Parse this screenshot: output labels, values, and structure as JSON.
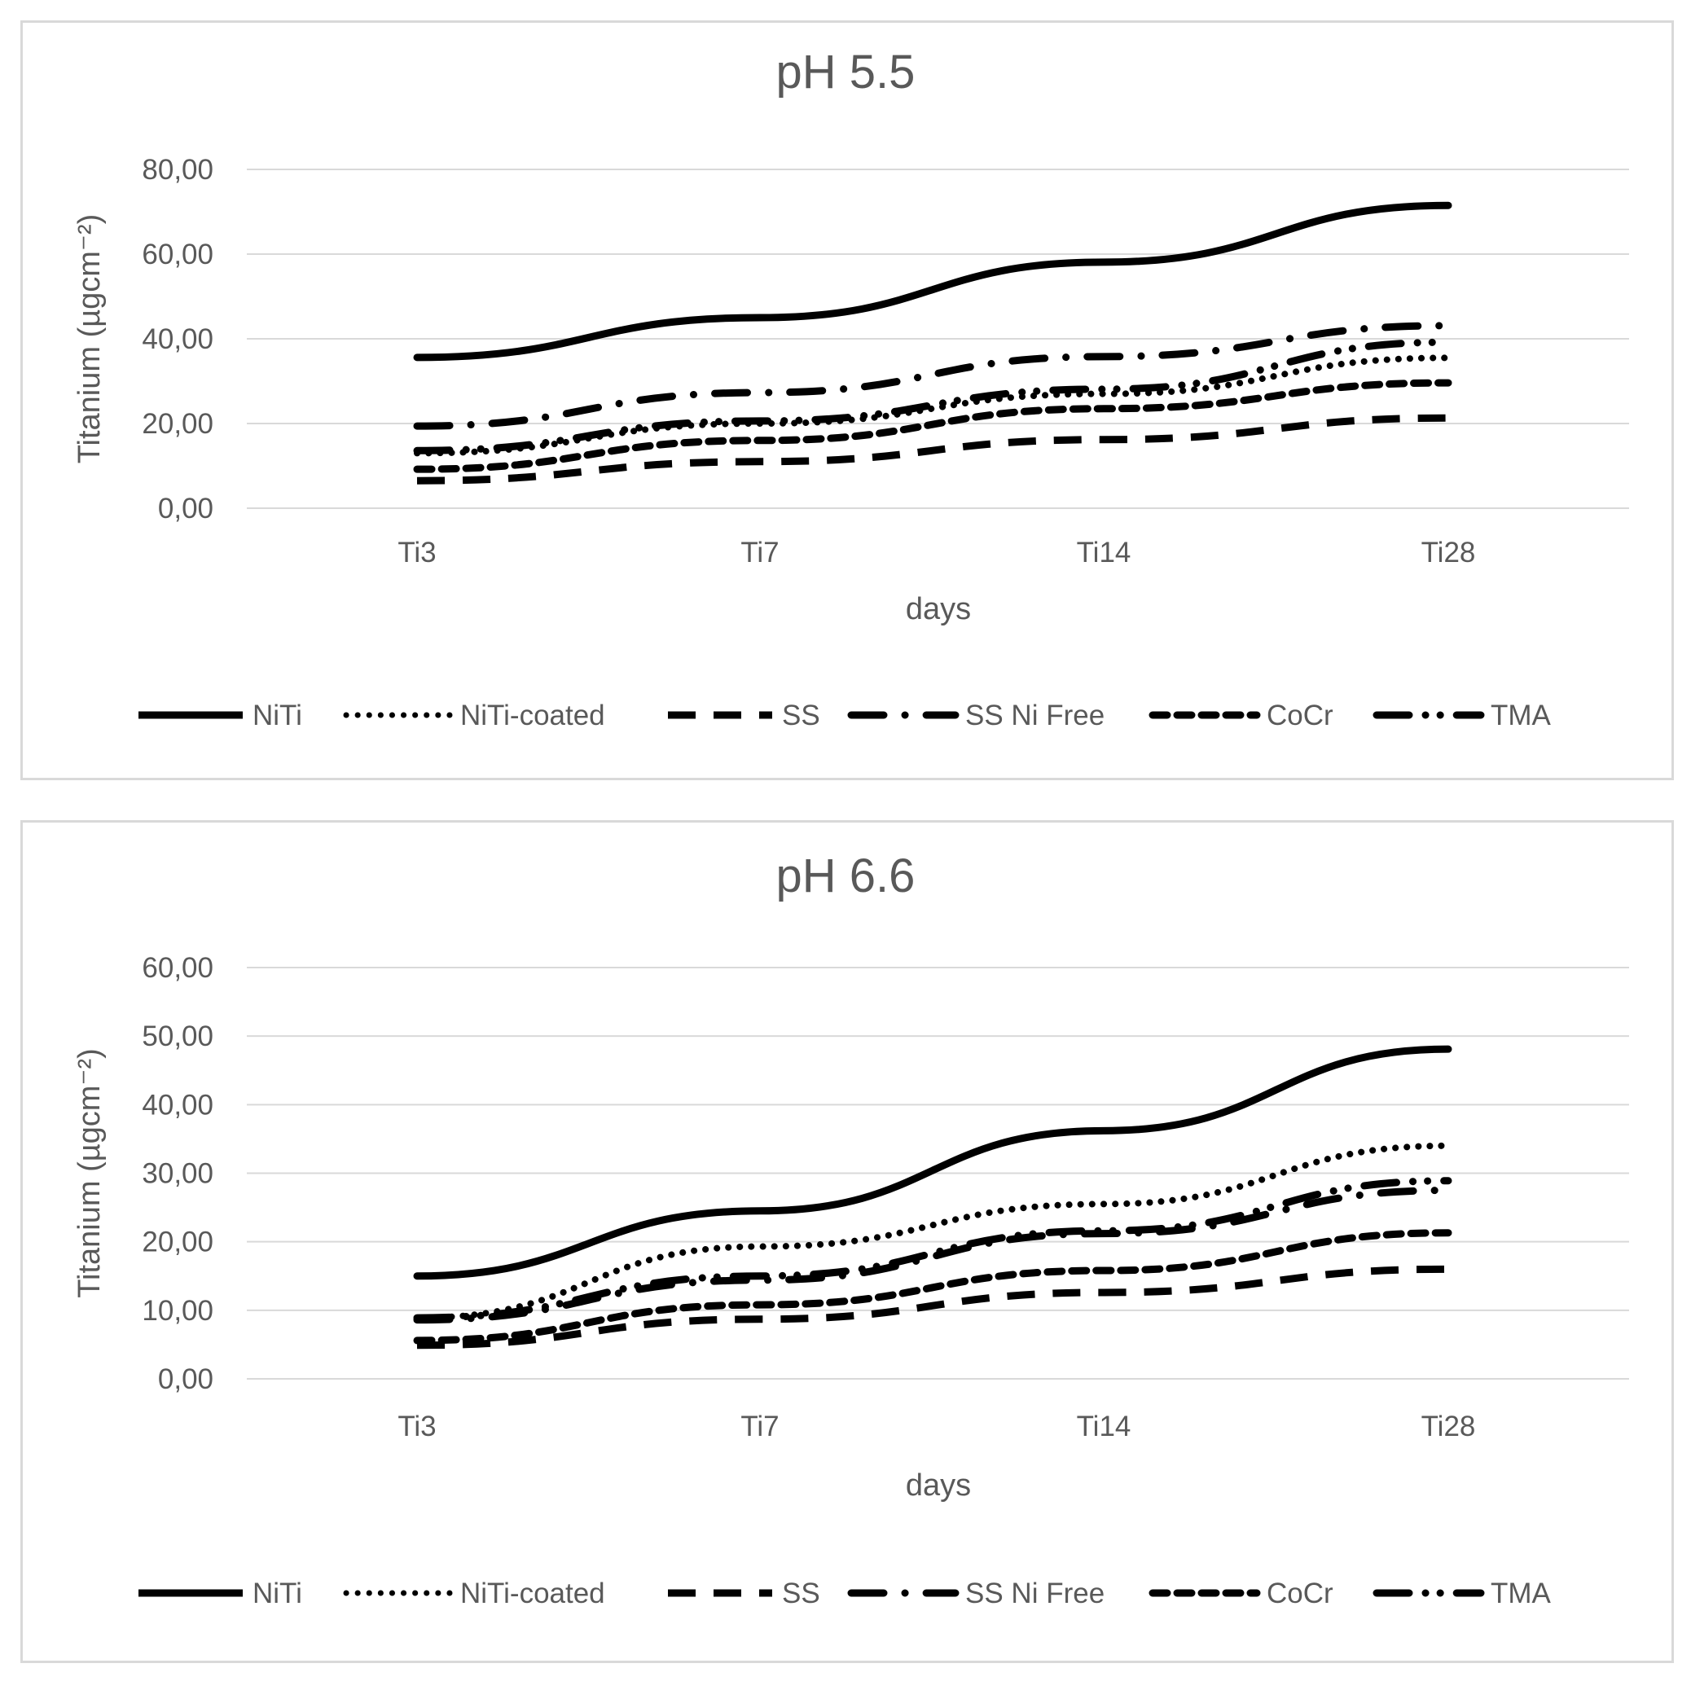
{
  "chart_data": [
    {
      "type": "line",
      "title": "pH 5.5",
      "xlabel": "days",
      "ylabel": "Titanium (µgcm⁻²)",
      "categories": [
        "Ti3",
        "Ti7",
        "Ti14",
        "Ti28"
      ],
      "ylim": [
        0,
        80
      ],
      "yticks": [
        "0,00",
        "20,00",
        "40,00",
        "60,00",
        "80,00"
      ],
      "ytick_values": [
        0,
        20,
        40,
        60,
        80
      ],
      "grid": true,
      "legend_position": "bottom",
      "series": [
        {
          "name": "NiTi",
          "style": "solid",
          "values": [
            35.6,
            45.0,
            58.1,
            71.5
          ]
        },
        {
          "name": "NiTi-coated",
          "style": "round-dot",
          "values": [
            13.0,
            20.0,
            27.0,
            35.5
          ]
        },
        {
          "name": "SS",
          "style": "dash",
          "values": [
            6.5,
            11.0,
            16.2,
            21.3
          ]
        },
        {
          "name": "SS Ni Free",
          "style": "long-dash-dot",
          "values": [
            19.4,
            27.3,
            35.8,
            43.1
          ]
        },
        {
          "name": "CoCr",
          "style": "square-dot",
          "values": [
            9.2,
            16.0,
            23.5,
            29.6
          ]
        },
        {
          "name": "TMA",
          "style": "long-dash-dot-dot",
          "values": [
            13.6,
            20.6,
            28.1,
            39.2
          ]
        }
      ]
    },
    {
      "type": "line",
      "title": "pH 6.6",
      "xlabel": "days",
      "ylabel": "Titanium (µgcm⁻²)",
      "categories": [
        "Ti3",
        "Ti7",
        "Ti14",
        "Ti28"
      ],
      "ylim": [
        0,
        60
      ],
      "yticks": [
        "0,00",
        "10,00",
        "20,00",
        "30,00",
        "40,00",
        "50,00",
        "60,00"
      ],
      "ytick_values": [
        0,
        10,
        20,
        30,
        40,
        50,
        60
      ],
      "grid": true,
      "legend_position": "bottom",
      "series": [
        {
          "name": "NiTi",
          "style": "solid",
          "values": [
            15.0,
            24.5,
            36.2,
            48.1
          ]
        },
        {
          "name": "NiTi-coated",
          "style": "round-dot",
          "values": [
            8.9,
            19.3,
            25.5,
            34.0
          ]
        },
        {
          "name": "SS",
          "style": "dash",
          "values": [
            4.9,
            8.7,
            12.6,
            16.0
          ]
        },
        {
          "name": "SS Ni Free",
          "style": "long-dash-dot",
          "values": [
            8.6,
            14.4,
            21.2,
            27.5
          ]
        },
        {
          "name": "CoCr",
          "style": "square-dot",
          "values": [
            5.6,
            10.8,
            15.8,
            21.3
          ]
        },
        {
          "name": "TMA",
          "style": "long-dash-dot-dot",
          "values": [
            8.9,
            15.0,
            21.6,
            28.9
          ]
        }
      ]
    }
  ],
  "colors": {
    "series": "#000000",
    "text": "#595959",
    "grid": "#d9d9d9",
    "frame": "#d9d9d9"
  }
}
